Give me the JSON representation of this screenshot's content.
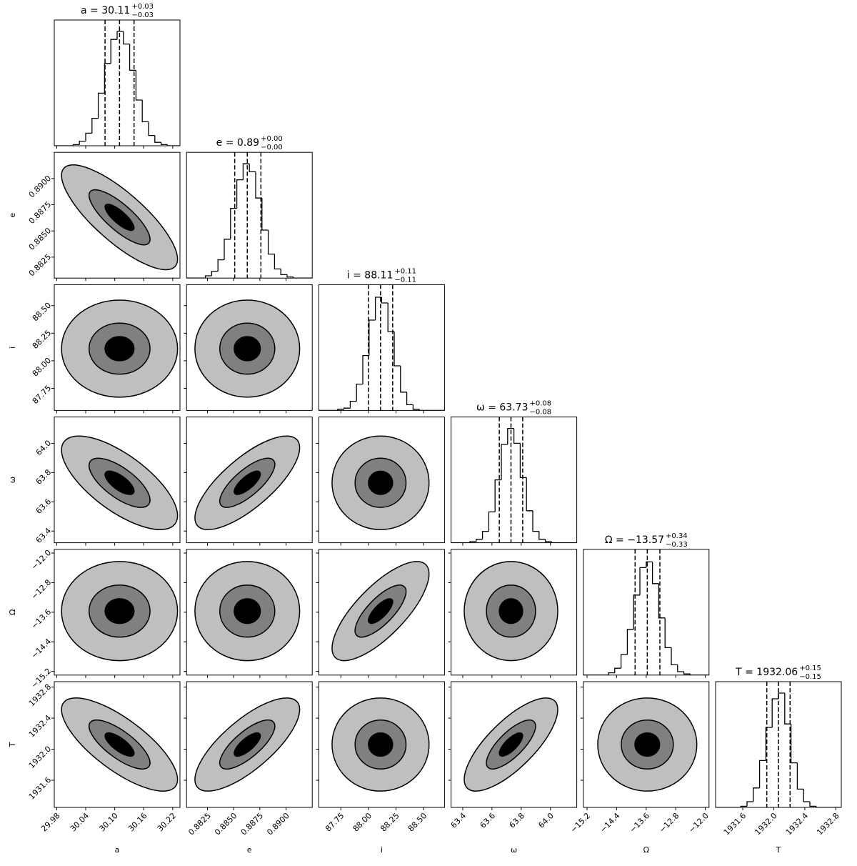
{
  "chart_data": {
    "type": "corner",
    "hist_ylim": [
      0,
      110
    ],
    "color": "#000000",
    "contour_fills": [
      "#bfbfbf",
      "#808080",
      "#000000"
    ],
    "parameters": [
      {
        "label": "a",
        "title": "a = 30.11",
        "title_plus": "+0.03",
        "title_minus": "−0.03",
        "lim": [
          29.975,
          30.235
        ],
        "ticks": [
          29.98,
          30.04,
          {
            "value": 30.1,
            "label": "30.10"
          },
          30.16,
          30.22
        ],
        "bins": [
          29.975,
          29.988,
          30.001,
          30.014,
          30.027,
          30.04,
          30.053,
          30.066,
          30.079,
          30.092,
          30.105,
          30.118,
          30.131,
          30.144,
          30.157,
          30.17,
          30.183,
          30.196,
          30.209,
          30.222,
          30.235
        ],
        "counts": [
          0,
          0,
          0,
          1,
          4,
          11,
          24,
          46,
          72,
          93,
          100,
          89,
          66,
          40,
          21,
          9,
          3,
          1,
          0,
          0
        ],
        "quantiles": [
          30.08,
          30.11,
          30.14
        ]
      },
      {
        "label": "e",
        "title": "e = 0.89",
        "title_plus": "+0.00",
        "title_minus": "−0.00",
        "lim": [
          0.8805,
          0.8925
        ],
        "ticks": [
          0.8825,
          {
            "value": 0.885,
            "label": "0.8850"
          },
          0.8875,
          {
            "value": 0.89,
            "label": "0.8900"
          }
        ],
        "bins": [
          0.8805,
          0.8811,
          0.8817,
          0.8823,
          0.8829,
          0.8835,
          0.8841,
          0.8847,
          0.8853,
          0.8859,
          0.8865,
          0.8871,
          0.8877,
          0.8883,
          0.8889,
          0.8895,
          0.8901,
          0.8907,
          0.8913,
          0.8919,
          0.8925
        ],
        "counts": [
          0,
          0,
          0,
          2,
          6,
          16,
          34,
          61,
          86,
          100,
          93,
          70,
          42,
          21,
          8,
          3,
          1,
          0,
          0,
          0
        ],
        "quantiles": [
          0.8851,
          0.8863,
          0.8876
        ],
        "rho": [
          -0.8
        ]
      },
      {
        "label": "i",
        "title": "i = 88.11",
        "title_plus": "+0.11",
        "title_minus": "−0.11",
        "lim": [
          87.55,
          88.69
        ],
        "ticks": [
          87.75,
          {
            "value": 88,
            "label": "88.00"
          },
          88.25,
          {
            "value": 88.5,
            "label": "88.50"
          }
        ],
        "bins": [
          87.55,
          87.607,
          87.664,
          87.721,
          87.778,
          87.835,
          87.892,
          87.949,
          88.006,
          88.063,
          88.12,
          88.177,
          88.234,
          88.291,
          88.348,
          88.405,
          88.462,
          88.519,
          88.576,
          88.633,
          88.69
        ],
        "counts": [
          0,
          0,
          0,
          1,
          2,
          8,
          23,
          48,
          79,
          99,
          94,
          69,
          39,
          16,
          5,
          1,
          0,
          0,
          0,
          0
        ],
        "quantiles": [
          88.0,
          88.11,
          88.22
        ],
        "rho": [
          0,
          0
        ]
      },
      {
        "label": "ω",
        "title": "ω = 63.73",
        "title_plus": "+0.08",
        "title_minus": "−0.08",
        "lim": [
          63.32,
          64.18
        ],
        "ticks": [
          63.4,
          63.6,
          63.8,
          {
            "value": 64,
            "label": "64.0"
          }
        ],
        "bins": [
          63.32,
          63.363,
          63.406,
          63.449,
          63.492,
          63.535,
          63.578,
          63.621,
          63.664,
          63.707,
          63.75,
          63.793,
          63.836,
          63.879,
          63.922,
          63.965,
          64.008,
          64.051,
          64.094,
          64.137,
          64.18
        ],
        "counts": [
          0,
          0,
          0,
          1,
          3,
          10,
          27,
          55,
          86,
          100,
          87,
          57,
          28,
          10,
          3,
          1,
          0,
          0,
          0,
          0
        ],
        "quantiles": [
          63.65,
          63.73,
          63.81
        ],
        "rho": [
          -0.7,
          0.75,
          0
        ]
      },
      {
        "label": "Ω",
        "title": "Ω = −13.57",
        "title_plus": "+0.34",
        "title_minus": "−0.33",
        "lim": [
          -15.3,
          -11.9
        ],
        "ticks": [
          {
            "value": -15.2,
            "label": "−15.2"
          },
          {
            "value": -14.4,
            "label": "−14.4"
          },
          {
            "value": -13.6,
            "label": "−13.6"
          },
          {
            "value": -12.8,
            "label": "−12.8"
          },
          {
            "value": -12,
            "label": "−12.0"
          }
        ],
        "bins": [
          -15.3,
          -15.13,
          -14.96,
          -14.79,
          -14.62,
          -14.45,
          -14.28,
          -14.11,
          -13.94,
          -13.77,
          -13.6,
          -13.43,
          -13.26,
          -13.09,
          -12.92,
          -12.75,
          -12.58,
          -12.41,
          -12.24,
          -12.07,
          -11.9
        ],
        "counts": [
          0,
          0,
          0,
          0,
          2,
          6,
          18,
          40,
          70,
          94,
          99,
          80,
          50,
          24,
          9,
          3,
          1,
          0,
          0,
          0
        ],
        "quantiles": [
          -13.9,
          -13.57,
          -13.23
        ],
        "rho": [
          0,
          0,
          0.75,
          0
        ]
      },
      {
        "label": "T",
        "title": "T = 1932.06",
        "title_plus": "+0.15",
        "title_minus": "−0.15",
        "lim": [
          1931.25,
          1932.87
        ],
        "ticks": [
          1931.6,
          {
            "value": 1932,
            "label": "1932.0"
          },
          1932.4,
          1932.8
        ],
        "bins": [
          1931.25,
          1931.331,
          1931.412,
          1931.493,
          1931.574,
          1931.655,
          1931.736,
          1931.817,
          1931.898,
          1931.979,
          1932.06,
          1932.141,
          1932.222,
          1932.303,
          1932.384,
          1932.465,
          1932.546,
          1932.627,
          1932.708,
          1932.789,
          1932.87
        ],
        "counts": [
          0,
          0,
          0,
          0,
          1,
          5,
          17,
          41,
          70,
          95,
          100,
          73,
          39,
          16,
          5,
          1,
          0,
          0,
          0,
          0
        ],
        "quantiles": [
          1931.91,
          1932.06,
          1932.21
        ],
        "rho": [
          -0.75,
          0.75,
          0,
          0.75,
          0
        ]
      }
    ]
  }
}
